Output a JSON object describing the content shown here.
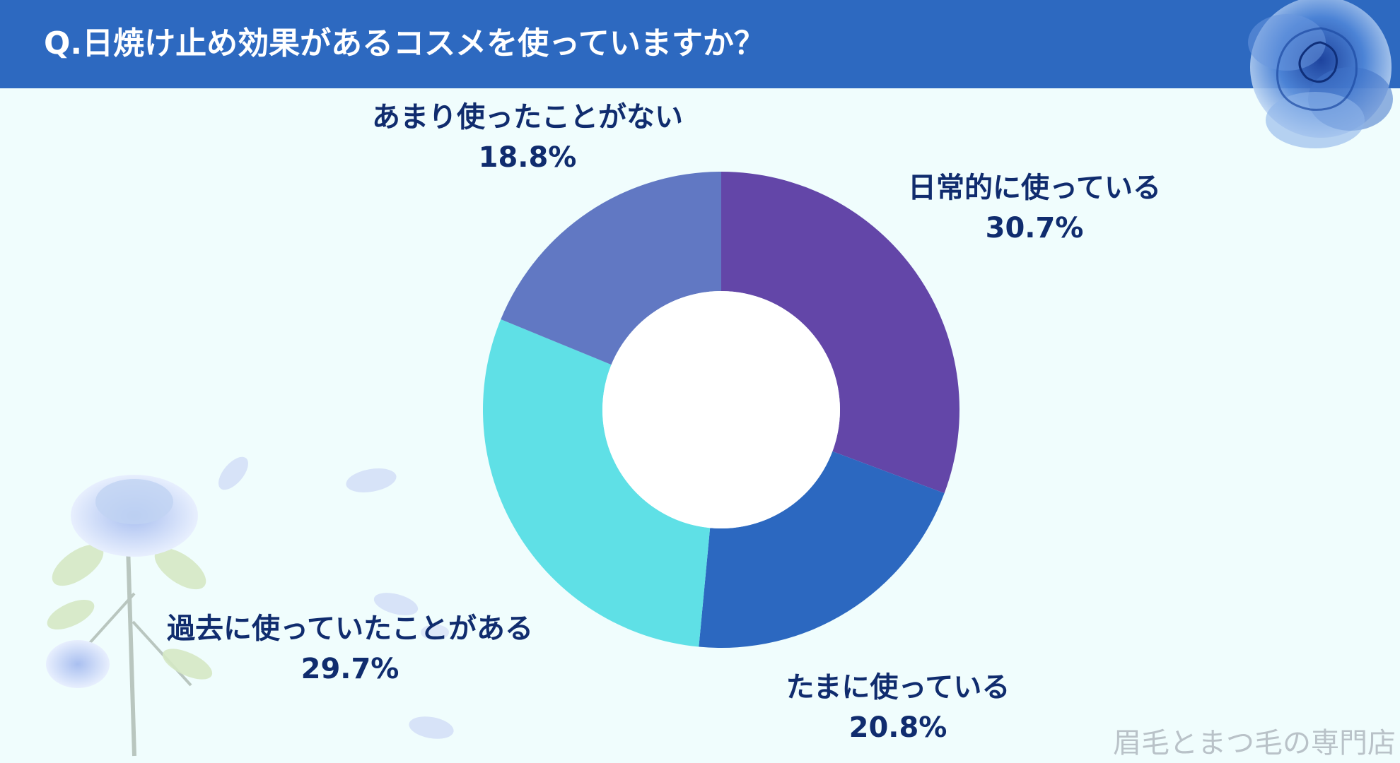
{
  "header": {
    "title": "Q.日焼け止め効果があるコスメを使っていますか？",
    "background_color": "#2d69c0"
  },
  "chart_data": {
    "type": "pie",
    "donut": true,
    "title": "Q.日焼け止め効果があるコスメを使っていますか？",
    "start_angle_deg": 0,
    "direction": "clockwise",
    "slices": [
      {
        "label": "日常的に使っている",
        "value": 30.7,
        "display": "30.7%",
        "color": "#6346a8"
      },
      {
        "label": "たまに使っている",
        "value": 20.8,
        "display": "20.8%",
        "color": "#2c68c0"
      },
      {
        "label": "過去に使っていたことがある",
        "value": 29.7,
        "display": "29.7%",
        "color": "#5fe0e6"
      },
      {
        "label": "あまり使ったことがない",
        "value": 18.8,
        "display": "18.8%",
        "color": "#6178c3"
      }
    ],
    "legend": "none"
  },
  "decorations": {
    "top_right": "blue-rose-icon",
    "bottom_left": "blue-rose-stem-icon"
  },
  "watermark": "眉毛とまつ毛の専門店"
}
